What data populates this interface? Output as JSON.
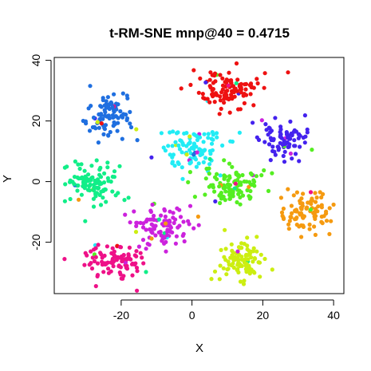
{
  "chart_data": {
    "type": "scatter",
    "title": "t-RM-SNE mnp@40 = 0.4715",
    "xlabel": "X",
    "ylabel": "Y",
    "xlim": [
      -38,
      42
    ],
    "ylim": [
      -38,
      42
    ],
    "x_ticks": [
      -20,
      0,
      20,
      40
    ],
    "y_ticks": [
      -20,
      0,
      20,
      40
    ],
    "x_tick_labels": [
      "-20",
      "0",
      "20",
      "40"
    ],
    "y_tick_labels": [
      "-20",
      "0",
      "20",
      "40"
    ],
    "grid": false,
    "legend": "none",
    "clusters": [
      {
        "color": "#1f6fe0",
        "center": [
          -23,
          22
        ],
        "spread": [
          5,
          5
        ],
        "count": 95
      },
      {
        "color": "#ee1111",
        "center": [
          10,
          30
        ],
        "spread": [
          6,
          4
        ],
        "count": 110
      },
      {
        "color": "#4422ee",
        "center": [
          26,
          14
        ],
        "spread": [
          4.5,
          4.5
        ],
        "count": 85
      },
      {
        "color": "#22ecf5",
        "center": [
          0,
          11
        ],
        "spread": [
          6,
          4.5
        ],
        "count": 100
      },
      {
        "color": "#11ee88",
        "center": [
          -28,
          -1
        ],
        "spread": [
          5,
          4
        ],
        "count": 100
      },
      {
        "color": "#55ee22",
        "center": [
          12,
          -1
        ],
        "spread": [
          6,
          4.5
        ],
        "count": 110
      },
      {
        "color": "#f59a10",
        "center": [
          32,
          -10
        ],
        "spread": [
          4.5,
          4.5
        ],
        "count": 95
      },
      {
        "color": "#cc22dd",
        "center": [
          -8,
          -15
        ],
        "spread": [
          6,
          4.5
        ],
        "count": 100
      },
      {
        "color": "#ee1188",
        "center": [
          -22,
          -26
        ],
        "spread": [
          5,
          4
        ],
        "count": 100
      },
      {
        "color": "#ccee11",
        "center": [
          14,
          -26
        ],
        "spread": [
          5,
          4
        ],
        "count": 95
      }
    ],
    "total_points": 990
  }
}
